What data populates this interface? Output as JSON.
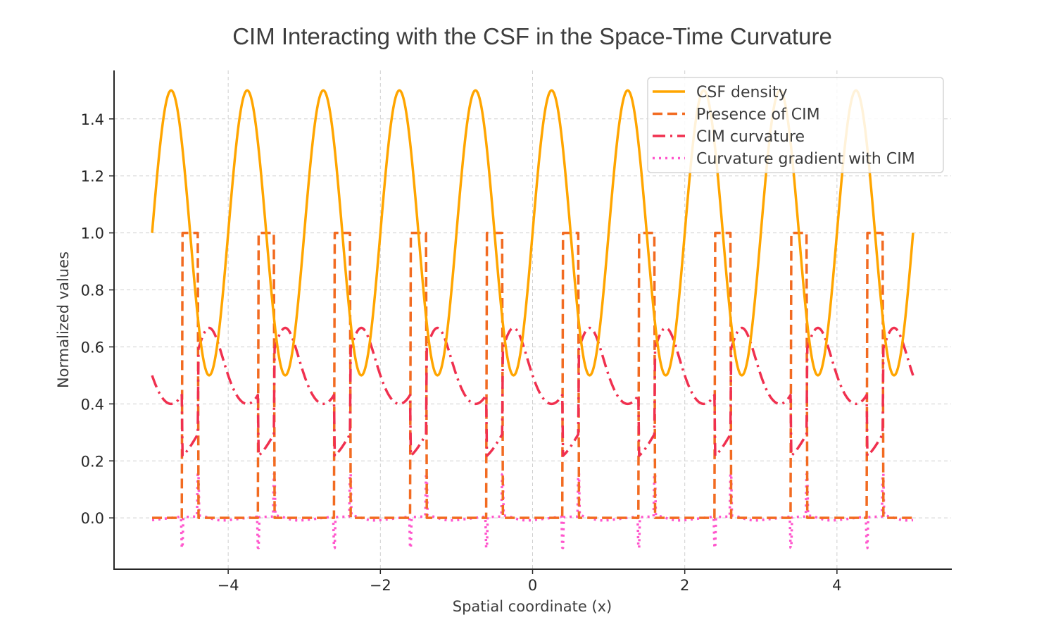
{
  "chart_data": {
    "type": "line",
    "title": "CIM Interacting with the CSF in the Space-Time Curvature",
    "xlabel": "Spatial coordinate (x)",
    "ylabel": "Normalized values",
    "xlim": [
      -5.5,
      5.5
    ],
    "ylim": [
      -0.18,
      1.57
    ],
    "x_ticks": [
      -4,
      -2,
      0,
      2,
      4
    ],
    "x_tick_labels": [
      "−4",
      "−2",
      "0",
      "2",
      "4"
    ],
    "y_ticks": [
      0.0,
      0.2,
      0.4,
      0.6,
      0.8,
      1.0,
      1.2,
      1.4
    ],
    "y_tick_labels": [
      "0.0",
      "0.2",
      "0.4",
      "0.6",
      "0.8",
      "1.0",
      "1.2",
      "1.4"
    ],
    "grid": true,
    "legend_position": "top-right",
    "x_range": [
      -5,
      5
    ],
    "sample_step": 0.01,
    "cim_intervals": [
      [
        -4.6,
        -4.4
      ],
      [
        -3.6,
        -3.4
      ],
      [
        -2.6,
        -2.4
      ],
      [
        -1.6,
        -1.4
      ],
      [
        -0.6,
        -0.4
      ],
      [
        0.4,
        0.6
      ],
      [
        1.4,
        1.6
      ],
      [
        2.4,
        2.6
      ],
      [
        3.4,
        3.6
      ],
      [
        4.4,
        4.6
      ]
    ],
    "series": [
      {
        "name": "CSF density",
        "style": "solid",
        "color": "#FFA500",
        "definition": "1 + 0.5*sin(2*pi*x)",
        "key_points": {
          "x": [
            -5,
            -4.75,
            -4.25,
            -3.75,
            -3.25,
            0.25,
            0.75,
            4.75,
            5
          ],
          "y": [
            1.0,
            1.5,
            0.5,
            1.5,
            0.5,
            1.5,
            0.5,
            0.5,
            1.0
          ]
        }
      },
      {
        "name": "Presence of CIM",
        "style": "dashed",
        "color": "#F26B21",
        "definition": "1 inside cim_intervals, else 0",
        "key_points": {
          "x": [
            -5,
            -4.6,
            -4.4,
            0,
            0.4,
            0.6,
            5
          ],
          "y": [
            0,
            1,
            0,
            0,
            1,
            0,
            0
          ]
        }
      },
      {
        "name": "CIM curvature",
        "style": "dashdot",
        "color": "#F0304F",
        "definition": "1/(1+CSF density), halved inside cim_intervals",
        "cim_factor": 0.5,
        "key_points": {
          "x": [
            -5,
            -4.75,
            -4.6,
            -4.4,
            -4.25,
            5
          ],
          "y": [
            0.5,
            0.4,
            0.22,
            0.29,
            0.667,
            0.5
          ]
        }
      },
      {
        "name": "Curvature gradient with CIM",
        "style": "dotted",
        "color": "#FF55CC",
        "definition": "central difference of CIM curvature per sample",
        "key_points": {
          "x": [
            -4.6,
            -4.4,
            0.4,
            0.6
          ],
          "y": [
            -0.1,
            0.16,
            -0.1,
            0.16
          ]
        }
      }
    ]
  }
}
